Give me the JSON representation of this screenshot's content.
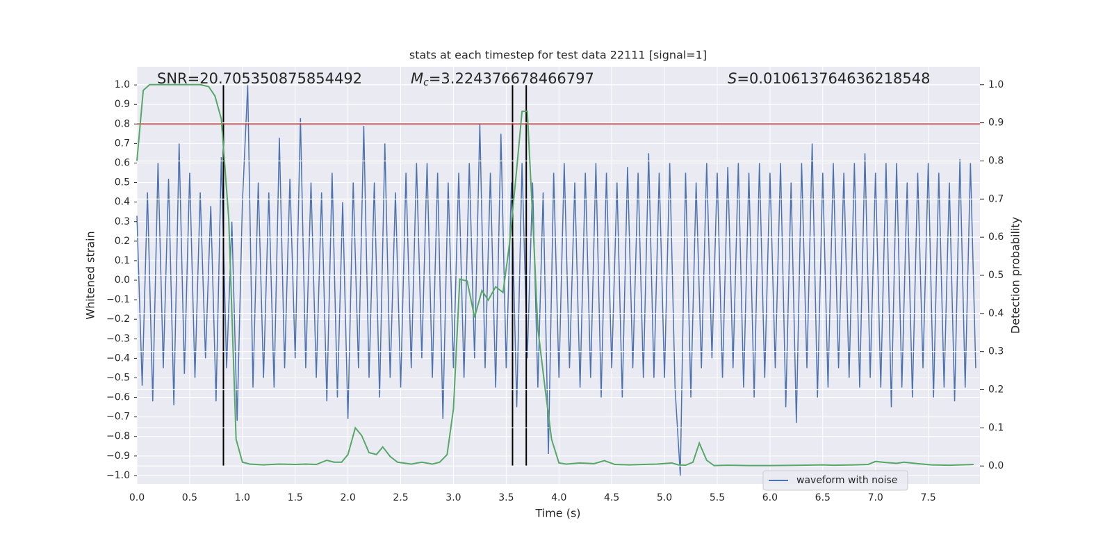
{
  "chart_data": {
    "type": "line",
    "title": "stats at each timestep for test data 22111 [signal=1]",
    "x_label": "Time (s)",
    "y_label": "Whitened strain",
    "y2_label": "Detection probability",
    "xlim": [
      0,
      7.99
    ],
    "ylim": [
      -1.043,
      1.093
    ],
    "y2lim": [
      -0.047,
      1.047
    ],
    "xticks": [
      {
        "value": 0,
        "label": "0.0"
      },
      0.5,
      {
        "value": 1,
        "label": "1.0"
      },
      1.5,
      {
        "value": 2,
        "label": "2.0"
      },
      2.5,
      {
        "value": 3,
        "label": "3.0"
      },
      3.5,
      {
        "value": 4,
        "label": "4.0"
      },
      4.5,
      {
        "value": 5,
        "label": "5.0"
      },
      5.5,
      {
        "value": 6,
        "label": "6.0"
      },
      6.5,
      {
        "value": 7,
        "label": "7.0"
      },
      7.5
    ],
    "yticks": [
      {
        "value": 1,
        "label": "1.0"
      },
      0.9,
      0.8,
      0.7,
      0.6,
      0.5,
      0.4,
      0.3,
      0.2,
      0.1,
      {
        "value": 0,
        "label": "0.0"
      },
      {
        "value": -0.1,
        "label": "−0.1"
      },
      {
        "value": -0.2,
        "label": "−0.2"
      },
      {
        "value": -0.3,
        "label": "−0.3"
      },
      {
        "value": -0.4,
        "label": "−0.4"
      },
      {
        "value": -0.5,
        "label": "−0.5"
      },
      {
        "value": -0.6,
        "label": "−0.6"
      },
      {
        "value": -0.7,
        "label": "−0.7"
      },
      {
        "value": -0.8,
        "label": "−0.8"
      },
      {
        "value": -0.9,
        "label": "−0.9"
      },
      {
        "value": -1,
        "label": "−1.0"
      }
    ],
    "y2ticks": [
      {
        "value": 0,
        "label": "0.0"
      },
      0.1,
      0.2,
      0.3,
      0.4,
      0.5,
      0.6,
      0.7,
      0.8,
      0.9,
      {
        "value": 1,
        "label": "1.0"
      }
    ],
    "grid": true,
    "legend_position": "lower right",
    "series": [
      {
        "name": "waveform with noise",
        "color": "#4c72b0",
        "axis": "y",
        "x": [
          0,
          0.05,
          0.1,
          0.15,
          0.2,
          0.25,
          0.3,
          0.35,
          0.4,
          0.45,
          0.5,
          0.55,
          0.6,
          0.65,
          0.7,
          0.75,
          0.8,
          0.85,
          0.9,
          0.95,
          1,
          1.05,
          1.1,
          1.15,
          1.2,
          1.25,
          1.3,
          1.35,
          1.4,
          1.45,
          1.5,
          1.55,
          1.6,
          1.65,
          1.7,
          1.75,
          1.8,
          1.85,
          1.9,
          1.95,
          2,
          2.05,
          2.1,
          2.15,
          2.2,
          2.25,
          2.3,
          2.35,
          2.4,
          2.45,
          2.5,
          2.55,
          2.6,
          2.65,
          2.7,
          2.75,
          2.8,
          2.85,
          2.9,
          2.95,
          3,
          3.05,
          3.1,
          3.15,
          3.2,
          3.25,
          3.3,
          3.35,
          3.4,
          3.45,
          3.5,
          3.55,
          3.6,
          3.65,
          3.7,
          3.75,
          3.8,
          3.85,
          3.9,
          3.95,
          4,
          4.05,
          4.1,
          4.15,
          4.2,
          4.25,
          4.3,
          4.35,
          4.4,
          4.45,
          4.5,
          4.55,
          4.6,
          4.65,
          4.7,
          4.75,
          4.8,
          4.85,
          4.9,
          4.95,
          5,
          5.05,
          5.1,
          5.15,
          5.2,
          5.25,
          5.3,
          5.35,
          5.4,
          5.45,
          5.5,
          5.55,
          5.6,
          5.65,
          5.7,
          5.75,
          5.8,
          5.85,
          5.9,
          5.95,
          6,
          6.05,
          6.1,
          6.15,
          6.2,
          6.25,
          6.3,
          6.35,
          6.4,
          6.45,
          6.5,
          6.55,
          6.6,
          6.65,
          6.7,
          6.75,
          6.8,
          6.85,
          6.9,
          6.95,
          7,
          7.05,
          7.1,
          7.15,
          7.2,
          7.25,
          7.3,
          7.35,
          7.4,
          7.45,
          7.5,
          7.55,
          7.6,
          7.65,
          7.7,
          7.75,
          7.8,
          7.85,
          7.9,
          7.95
        ],
        "values": [
          0.33,
          -0.54,
          0.45,
          -0.62,
          0.6,
          -0.45,
          0.52,
          -0.64,
          0.7,
          -0.48,
          0.55,
          -0.5,
          0.45,
          -0.4,
          0.38,
          -0.62,
          0.63,
          -0.45,
          0.3,
          -0.72,
          0.4,
          1.0,
          -0.55,
          0.5,
          -0.5,
          0.45,
          -0.55,
          0.73,
          -0.45,
          0.52,
          -0.4,
          0.83,
          -0.45,
          0.5,
          -0.5,
          0.45,
          -0.62,
          0.55,
          -0.6,
          0.4,
          -0.71,
          0.5,
          -0.45,
          0.79,
          -0.5,
          0.5,
          -0.6,
          0.7,
          -0.5,
          0.45,
          -0.55,
          0.55,
          -0.45,
          0.6,
          -0.4,
          0.6,
          -0.5,
          0.55,
          -0.71,
          0.5,
          -0.45,
          0.55,
          -0.5,
          0.6,
          -0.4,
          0.8,
          -0.45,
          0.55,
          -0.55,
          0.75,
          -0.45,
          0.5,
          -0.65,
          0.6,
          -0.4,
          0.5,
          -0.55,
          0.45,
          -0.89,
          0.55,
          -0.5,
          0.6,
          -0.45,
          0.5,
          -0.55,
          0.55,
          -0.5,
          0.6,
          -0.6,
          0.55,
          -0.45,
          0.5,
          -0.6,
          0.58,
          -0.45,
          0.55,
          -0.5,
          0.65,
          -0.5,
          0.55,
          -0.5,
          0.6,
          -0.55,
          -1.0,
          0.55,
          -0.6,
          0.5,
          -0.45,
          0.6,
          -0.4,
          0.55,
          -0.5,
          0.58,
          -0.45,
          0.6,
          -0.55,
          0.55,
          -0.6,
          0.6,
          -0.5,
          0.55,
          -0.45,
          0.6,
          -0.65,
          0.5,
          -0.73,
          0.6,
          -0.45,
          0.7,
          -0.6,
          0.55,
          -0.55,
          0.6,
          -0.45,
          0.55,
          -0.5,
          0.6,
          -0.55,
          0.65,
          -0.5,
          0.55,
          -0.55,
          0.6,
          -0.65,
          0.6,
          -0.55,
          0.5,
          -0.6,
          0.55,
          -0.45,
          0.6,
          -0.6,
          0.55,
          -0.55,
          0.5,
          -0.62,
          0.62,
          -0.55,
          0.6,
          -0.45
        ]
      },
      {
        "color": "#55a868",
        "axis": "y2",
        "x": [
          0,
          0.06,
          0.12,
          0.2,
          0.4,
          0.6,
          0.68,
          0.74,
          0.8,
          0.87,
          0.94,
          1.0,
          1.07,
          1.2,
          1.35,
          1.5,
          1.6,
          1.7,
          1.8,
          1.87,
          1.94,
          2.0,
          2.07,
          2.13,
          2.2,
          2.27,
          2.33,
          2.4,
          2.47,
          2.6,
          2.7,
          2.8,
          2.87,
          2.94,
          3.0,
          3.06,
          3.13,
          3.2,
          3.27,
          3.33,
          3.4,
          3.47,
          3.53,
          3.6,
          3.65,
          3.7,
          3.76,
          3.8,
          3.87,
          3.93,
          4.0,
          4.07,
          4.2,
          4.33,
          4.43,
          4.53,
          4.67,
          4.8,
          4.93,
          5.07,
          5.13,
          5.2,
          5.27,
          5.33,
          5.4,
          5.47,
          5.6,
          5.8,
          6.0,
          6.3,
          6.5,
          6.6,
          6.8,
          6.93,
          7.0,
          7.1,
          7.2,
          7.27,
          7.4,
          7.53,
          7.7,
          7.93
        ],
        "values": [
          0.8,
          0.985,
          1.0,
          1.0,
          1.0,
          1.0,
          0.995,
          0.97,
          0.91,
          0.65,
          0.07,
          0.01,
          0.005,
          0.003,
          0.005,
          0.004,
          0.005,
          0.004,
          0.015,
          0.01,
          0.01,
          0.03,
          0.1,
          0.08,
          0.035,
          0.03,
          0.05,
          0.025,
          0.01,
          0.005,
          0.01,
          0.005,
          0.01,
          0.03,
          0.15,
          0.49,
          0.485,
          0.39,
          0.46,
          0.435,
          0.47,
          0.455,
          0.58,
          0.78,
          0.93,
          0.93,
          0.6,
          0.36,
          0.2,
          0.07,
          0.008,
          0.005,
          0.008,
          0.006,
          0.014,
          0.004,
          0.003,
          0.004,
          0.005,
          0.008,
          0.003,
          0.002,
          0.01,
          0.06,
          0.015,
          0.001,
          0.002,
          0.001,
          0.001,
          0.002,
          0.003,
          0.002,
          0.003,
          0.004,
          0.012,
          0.009,
          0.007,
          0.01,
          0.006,
          0.003,
          0.002,
          0.004
        ]
      }
    ],
    "vlines": {
      "x": [
        0.82,
        3.56,
        3.69
      ],
      "ymin": -0.95,
      "ymax": 1.0,
      "color": "#000000"
    },
    "hline": {
      "y": 0.8,
      "color": "#c62828"
    },
    "annotations": [
      {
        "text": "SNR=20.705350875854492"
      },
      {
        "symbol": "M",
        "subscript": "c",
        "text": "=3.224376678466797"
      },
      {
        "symbol": "S",
        "text": "=0.010613764636218548"
      }
    ]
  }
}
